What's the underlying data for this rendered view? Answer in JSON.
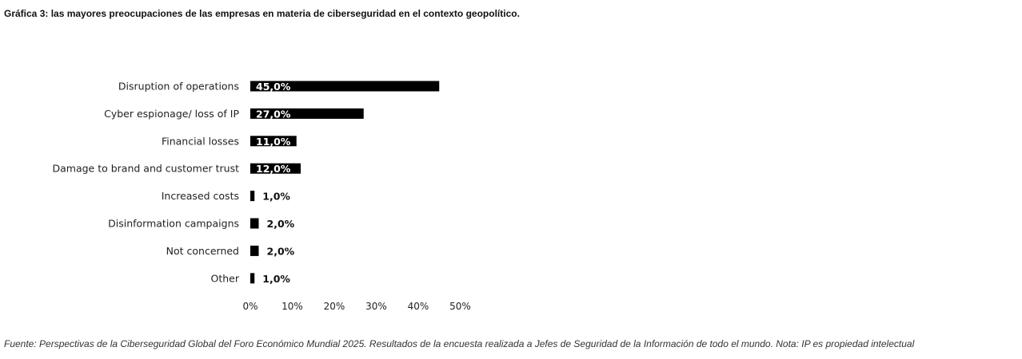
{
  "figure": {
    "title": "Gráfica 3: las mayores preocupaciones de las empresas en materia de ciberseguridad en el contexto geopolítico.",
    "source": "Fuente: Perspectivas de la Ciberseguridad Global del Foro Económico Mundial 2025. Resultados de la encuesta realizada a Jefes de Seguridad de la Información de todo el mundo. Nota: IP es propiedad intelectual"
  },
  "chart_data": {
    "type": "bar",
    "orientation": "horizontal",
    "categories": [
      "Disruption of operations",
      "Cyber espionage/ loss of IP",
      "Financial losses",
      "Damage to brand and customer trust",
      "Increased costs",
      "Disinformation campaigns",
      "Not concerned",
      "Other"
    ],
    "values": [
      45.0,
      27.0,
      11.0,
      12.0,
      1.0,
      2.0,
      2.0,
      1.0
    ],
    "value_labels": [
      "45,0%",
      "27,0%",
      "11,0%",
      "12,0%",
      "1,0%",
      "2,0%",
      "2,0%",
      "1,0%"
    ],
    "xlim": [
      0,
      50
    ],
    "x_ticks": [
      "0%",
      "10%",
      "20%",
      "30%",
      "40%",
      "50%"
    ],
    "bar_color": "#000000",
    "grid": false,
    "legend": "none"
  }
}
